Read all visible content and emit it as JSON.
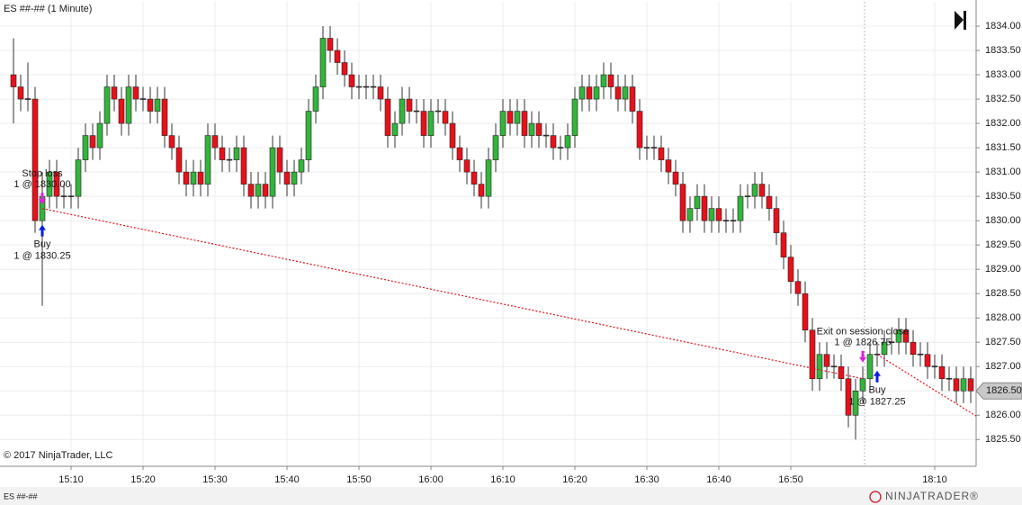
{
  "chart_data": {
    "type": "candlestick",
    "title": "ES ##-## (1 Minute)",
    "copyright": "© 2017 NinjaTrader, LLC",
    "instrument_tab": "ES ##-##",
    "logo": "NINJATRADER®",
    "up_color": "#33b43c",
    "down_color": "#e8101a",
    "grid": true,
    "categories": [
      "15:02",
      "15:03",
      "15:04",
      "15:05",
      "15:06",
      "15:07",
      "15:08",
      "15:09",
      "15:10",
      "15:11",
      "15:12",
      "15:13",
      "15:14",
      "15:15",
      "15:16",
      "15:17",
      "15:18",
      "15:19",
      "15:20",
      "15:21",
      "15:22",
      "15:23",
      "15:24",
      "15:25",
      "15:26",
      "15:27",
      "15:28",
      "15:29",
      "15:30",
      "15:31",
      "15:32",
      "15:33",
      "15:34",
      "15:35",
      "15:36",
      "15:37",
      "15:38",
      "15:39",
      "15:40",
      "15:41",
      "15:42",
      "15:43",
      "15:44",
      "15:45",
      "15:46",
      "15:47",
      "15:48",
      "15:49",
      "15:50",
      "15:51",
      "15:52",
      "15:53",
      "15:54",
      "15:55",
      "15:56",
      "15:57",
      "15:58",
      "15:59",
      "16:00",
      "16:01",
      "16:02",
      "16:03",
      "16:04",
      "16:05",
      "16:06",
      "16:07",
      "16:08",
      "16:09",
      "16:10",
      "16:11",
      "16:12",
      "16:13",
      "16:14",
      "16:15",
      "16:16",
      "16:17",
      "16:18",
      "16:19",
      "16:20",
      "16:21",
      "16:22",
      "16:23",
      "16:24",
      "16:25",
      "16:26",
      "16:27",
      "16:28",
      "16:29",
      "16:30",
      "16:31",
      "16:32",
      "16:33",
      "16:34",
      "16:35",
      "16:36",
      "16:37",
      "16:38",
      "16:39",
      "16:40",
      "16:41",
      "16:42",
      "16:43",
      "16:44",
      "16:45",
      "16:46",
      "16:47",
      "16:48",
      "16:49",
      "16:50",
      "16:51",
      "16:52",
      "16:53",
      "16:54",
      "16:55",
      "16:56",
      "16:57",
      "16:58",
      "16:59",
      "17:00",
      "18:01",
      "18:02",
      "18:03",
      "18:04",
      "18:05",
      "18:06",
      "18:07",
      "18:08",
      "18:09",
      "18:10",
      "18:11",
      "18:12",
      "18:13",
      "18:14",
      "18:15"
    ],
    "open": [
      1833,
      1832.75,
      1832.5,
      1832.5,
      1830,
      1830.5,
      1831,
      1830.5,
      1830.5,
      1830.5,
      1831.25,
      1831.75,
      1831.5,
      1832,
      1832.75,
      1832.5,
      1832,
      1832.75,
      1832.5,
      1832.5,
      1832.25,
      1832.5,
      1831.75,
      1831.5,
      1831,
      1830.75,
      1831,
      1830.75,
      1831.75,
      1831.5,
      1831.25,
      1831.25,
      1831.5,
      1830.75,
      1830.5,
      1830.75,
      1830.5,
      1831.5,
      1831,
      1830.75,
      1831,
      1831.25,
      1832.25,
      1832.75,
      1833.75,
      1833.5,
      1833.25,
      1833,
      1832.75,
      1832.75,
      1832.75,
      1832.75,
      1832.5,
      1831.75,
      1832,
      1832.5,
      1832.25,
      1832.25,
      1831.75,
      1832.25,
      1832.25,
      1832,
      1831.5,
      1831.25,
      1831,
      1830.75,
      1830.5,
      1831.25,
      1831.75,
      1832.25,
      1832,
      1832.25,
      1831.75,
      1832,
      1831.75,
      1831.75,
      1831.5,
      1831.5,
      1831.75,
      1832.5,
      1832.75,
      1832.5,
      1832.75,
      1833,
      1832.75,
      1832.5,
      1832.75,
      1832.25,
      1831.5,
      1831.5,
      1831.5,
      1831.25,
      1831,
      1830.75,
      1830,
      1830.25,
      1830.5,
      1830,
      1830.25,
      1830,
      1830,
      1830,
      1830.5,
      1830.5,
      1830.75,
      1830.5,
      1830.25,
      1829.75,
      1829.25,
      1828.75,
      1828.5,
      1827.75,
      1826.75,
      1827.25,
      1827,
      1827,
      1826.75,
      1826,
      1826.5,
      1826.75,
      1827.25,
      1827.25,
      1827.5,
      1827.5,
      1827.75,
      1827.5,
      1827.25,
      1827.25,
      1827,
      1827,
      1826.75,
      1826.75,
      1826.5,
      1826.75
    ],
    "high": [
      1833.75,
      1833,
      1833.25,
      1832.75,
      1831,
      1831.25,
      1831.25,
      1830.75,
      1830.75,
      1831.5,
      1832,
      1832,
      1832.25,
      1833,
      1833,
      1832.75,
      1833,
      1833,
      1832.75,
      1832.75,
      1832.75,
      1832.75,
      1832,
      1831.75,
      1831.25,
      1831.25,
      1831.25,
      1832,
      1832,
      1831.75,
      1831.5,
      1831.75,
      1831.75,
      1831,
      1831,
      1831,
      1831.75,
      1831.75,
      1831.25,
      1831.25,
      1831.5,
      1832.5,
      1833,
      1834,
      1834,
      1833.75,
      1833.5,
      1833.25,
      1833,
      1833,
      1833,
      1833,
      1832.75,
      1832.25,
      1832.75,
      1832.75,
      1832.5,
      1832.5,
      1832.5,
      1832.5,
      1832.5,
      1832.25,
      1831.75,
      1831.5,
      1831.25,
      1831,
      1831.5,
      1832,
      1832.5,
      1832.5,
      1832.5,
      1832.5,
      1832.25,
      1832.25,
      1832,
      1832,
      1831.75,
      1832,
      1832.75,
      1833,
      1833,
      1833,
      1833.25,
      1833.25,
      1833,
      1833,
      1833,
      1832.5,
      1831.75,
      1831.75,
      1831.75,
      1831.5,
      1831.25,
      1831,
      1830.5,
      1830.75,
      1830.75,
      1830.5,
      1830.5,
      1830.25,
      1830.25,
      1830.75,
      1830.75,
      1831,
      1831,
      1830.75,
      1830.5,
      1830,
      1829.5,
      1829,
      1828.75,
      1828,
      1827.5,
      1827.5,
      1827.25,
      1827.25,
      1827,
      1826.75,
      1827,
      1827.5,
      1827.5,
      1827.75,
      1827.75,
      1828,
      1828,
      1827.75,
      1827.5,
      1827.5,
      1827.25,
      1827.25,
      1827,
      1827,
      1827,
      1827
    ],
    "low": [
      1832,
      1832.25,
      1832.25,
      1829.75,
      1828.25,
      1830.25,
      1830.25,
      1830.25,
      1830.25,
      1830.25,
      1831,
      1831.25,
      1831.25,
      1831.75,
      1832.25,
      1831.75,
      1831.75,
      1832.25,
      1832.25,
      1832,
      1832,
      1831.5,
      1831.25,
      1830.75,
      1830.5,
      1830.5,
      1830.5,
      1830.5,
      1831.25,
      1831,
      1831,
      1831,
      1830.5,
      1830.25,
      1830.25,
      1830.25,
      1830.25,
      1830.75,
      1830.5,
      1830.5,
      1830.75,
      1831,
      1832,
      1832.5,
      1833.25,
      1833,
      1832.75,
      1832.5,
      1832.5,
      1832.5,
      1832.5,
      1832.25,
      1831.5,
      1831.5,
      1831.75,
      1832,
      1832,
      1831.5,
      1831.5,
      1832,
      1831.75,
      1831.25,
      1831,
      1830.75,
      1830.5,
      1830.25,
      1830.25,
      1831,
      1831.5,
      1831.75,
      1831.75,
      1831.5,
      1831.5,
      1831.5,
      1831.5,
      1831.25,
      1831.25,
      1831.25,
      1831.5,
      1832.25,
      1832.25,
      1832.25,
      1832.5,
      1832.5,
      1832.25,
      1832.25,
      1832,
      1831.25,
      1831.25,
      1831.25,
      1831,
      1830.75,
      1830.5,
      1829.75,
      1829.75,
      1830,
      1829.75,
      1829.75,
      1829.75,
      1829.75,
      1829.75,
      1829.75,
      1830.25,
      1830.25,
      1830.25,
      1830,
      1829.5,
      1829,
      1828.5,
      1828.25,
      1827.5,
      1826.5,
      1826.5,
      1826.75,
      1826.75,
      1826.5,
      1825.75,
      1825.5,
      1826.25,
      1826.5,
      1827,
      1827,
      1827.25,
      1827.25,
      1827.25,
      1827,
      1827,
      1826.75,
      1826.75,
      1826.5,
      1826.5,
      1826.25,
      1826.25,
      1826.25
    ],
    "close": [
      1832.75,
      1832.5,
      1832.5,
      1830,
      1830.5,
      1831,
      1830.5,
      1830.5,
      1830.5,
      1831.25,
      1831.75,
      1831.5,
      1832,
      1832.75,
      1832.5,
      1832,
      1832.75,
      1832.5,
      1832.5,
      1832.25,
      1832.5,
      1831.75,
      1831.5,
      1831,
      1830.75,
      1831,
      1830.75,
      1831.75,
      1831.5,
      1831.25,
      1831.25,
      1831.5,
      1830.75,
      1830.5,
      1830.75,
      1830.5,
      1831.5,
      1831,
      1830.75,
      1831,
      1831.25,
      1832.25,
      1832.75,
      1833.75,
      1833.5,
      1833.25,
      1833,
      1832.75,
      1832.75,
      1832.75,
      1832.75,
      1832.5,
      1831.75,
      1832,
      1832.5,
      1832.25,
      1832.25,
      1831.75,
      1832.25,
      1832.25,
      1832,
      1831.5,
      1831.25,
      1831,
      1830.75,
      1830.5,
      1831.25,
      1831.75,
      1832.25,
      1832,
      1832.25,
      1831.75,
      1832,
      1831.75,
      1831.75,
      1831.5,
      1831.5,
      1831.75,
      1832.5,
      1832.75,
      1832.5,
      1832.75,
      1833,
      1832.75,
      1832.5,
      1832.75,
      1832.25,
      1831.5,
      1831.5,
      1831.5,
      1831.25,
      1831,
      1830.75,
      1830,
      1830.25,
      1830.5,
      1830,
      1830.25,
      1830,
      1830,
      1830,
      1830.5,
      1830.5,
      1830.75,
      1830.5,
      1830.25,
      1829.75,
      1829.25,
      1828.75,
      1828.5,
      1827.75,
      1826.75,
      1827.25,
      1827,
      1827,
      1826.75,
      1826,
      1826.5,
      1826.75,
      1827.25,
      1827.25,
      1827.5,
      1827.5,
      1827.75,
      1827.5,
      1827.25,
      1827.25,
      1827,
      1827,
      1826.75,
      1826.75,
      1826.5,
      1826.75,
      1826.5
    ],
    "ylim": [
      1824.95,
      1834.5
    ],
    "yticks": [
      {
        "value": 1825.5,
        "label": "1825.50"
      },
      {
        "value": 1826,
        "label": "1826.00"
      },
      {
        "value": 1826.5,
        "label": "1826.50"
      },
      {
        "value": 1827,
        "label": "1827.00"
      },
      {
        "value": 1827.5,
        "label": "1827.50"
      },
      {
        "value": 1828,
        "label": "1828.00"
      },
      {
        "value": 1828.5,
        "label": "1828.50"
      },
      {
        "value": 1829,
        "label": "1829.00"
      },
      {
        "value": 1829.5,
        "label": "1829.50"
      },
      {
        "value": 1830,
        "label": "1830.00"
      },
      {
        "value": 1830.5,
        "label": "1830.50"
      },
      {
        "value": 1831,
        "label": "1831.00"
      },
      {
        "value": 1831.5,
        "label": "1831.50"
      },
      {
        "value": 1832,
        "label": "1832.00"
      },
      {
        "value": 1832.5,
        "label": "1832.50"
      },
      {
        "value": 1833,
        "label": "1833.00"
      },
      {
        "value": 1833.5,
        "label": "1833.50"
      },
      {
        "value": 1834,
        "label": "1834.00"
      }
    ],
    "xticks": [
      "15:10",
      "15:20",
      "15:30",
      "15:40",
      "15:50",
      "16:00",
      "16:10",
      "16:20",
      "16:30",
      "16:40",
      "16:50",
      "18:10"
    ],
    "last_price": {
      "value": 1826.5,
      "label": "1826.50"
    },
    "buy_color": "#0a1ee6",
    "sell_color": "#e020e0",
    "trade_line_color": "#e8101a",
    "executions": [
      {
        "label": "Stop loss",
        "detail": "1 @ 1830.00",
        "side": "sell",
        "price": 1830,
        "time": "15:06"
      },
      {
        "label": "Buy",
        "detail": "1 @ 1830.25",
        "side": "buy",
        "price": 1830.25,
        "time": "15:06"
      },
      {
        "label": "Exit on session close",
        "detail": "1 @ 1826.75",
        "side": "sell",
        "price": 1826.75,
        "time": "17:00"
      },
      {
        "label": "Buy",
        "detail": "1 @ 1827.25",
        "side": "buy",
        "price": 1827.25,
        "time": "18:02"
      }
    ]
  }
}
